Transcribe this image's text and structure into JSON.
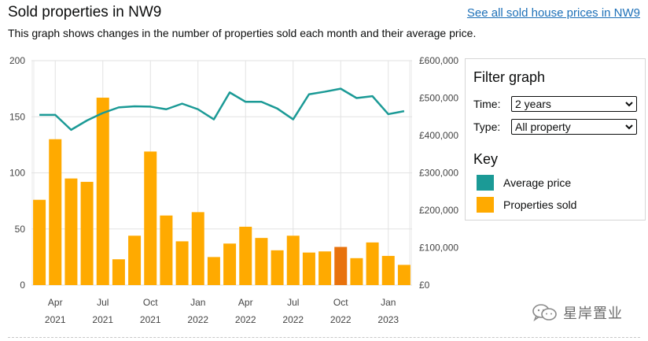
{
  "header": {
    "title": "Sold properties in NW9",
    "link": "See all sold house prices in NW9",
    "subtitle": "This graph shows changes in the number of properties sold each month and their average price."
  },
  "filter": {
    "heading": "Filter graph",
    "time_label": "Time:",
    "time_value": "2 years",
    "type_label": "Type:",
    "type_value": "All property",
    "key_heading": "Key",
    "key_items": [
      {
        "label": "Average price",
        "color": "#1b9a96"
      },
      {
        "label": "Properties sold",
        "color": "#ffaa00"
      }
    ]
  },
  "watermark": {
    "text": "星岸置业",
    "icon": "wechat-icon"
  },
  "chart_data": {
    "type": "bar+line",
    "series": [
      {
        "name": "Properties sold",
        "axis": "left",
        "values": [
          76,
          130,
          95,
          92,
          167,
          23,
          44,
          119,
          62,
          39,
          65,
          25,
          37,
          52,
          42,
          31,
          44,
          29,
          30,
          34,
          24,
          38,
          26,
          18
        ],
        "color": "#ffaa00",
        "highlight_index": 19,
        "highlight_color": "#e8720c"
      },
      {
        "name": "Average price",
        "axis": "right",
        "values": [
          455000,
          455000,
          415000,
          440000,
          460000,
          475000,
          478000,
          477000,
          470000,
          485000,
          470000,
          443000,
          515000,
          490000,
          490000,
          472000,
          443000,
          510000,
          517000,
          525000,
          500000,
          505000,
          457000,
          465000
        ],
        "color": "#1b9a96"
      }
    ],
    "left_axis": {
      "ylim": [
        0,
        200
      ],
      "ticks": [
        0,
        50,
        100,
        150,
        200
      ]
    },
    "right_axis": {
      "ylim": [
        0,
        600000
      ],
      "ticks": [
        0,
        100000,
        200000,
        300000,
        400000,
        500000,
        600000
      ],
      "tick_labels": [
        "£0",
        "£100,000",
        "£200,000",
        "£300,000",
        "£400,000",
        "£500,000",
        "£600,000"
      ]
    },
    "x_ticks": [
      {
        "index": 1,
        "month": "Apr",
        "year": "2021"
      },
      {
        "index": 4,
        "month": "Jul",
        "year": "2021"
      },
      {
        "index": 7,
        "month": "Oct",
        "year": "2021"
      },
      {
        "index": 10,
        "month": "Jan",
        "year": "2022"
      },
      {
        "index": 13,
        "month": "Apr",
        "year": "2022"
      },
      {
        "index": 16,
        "month": "Jul",
        "year": "2022"
      },
      {
        "index": 19,
        "month": "Oct",
        "year": "2022"
      },
      {
        "index": 22,
        "month": "Jan",
        "year": "2023"
      }
    ]
  }
}
